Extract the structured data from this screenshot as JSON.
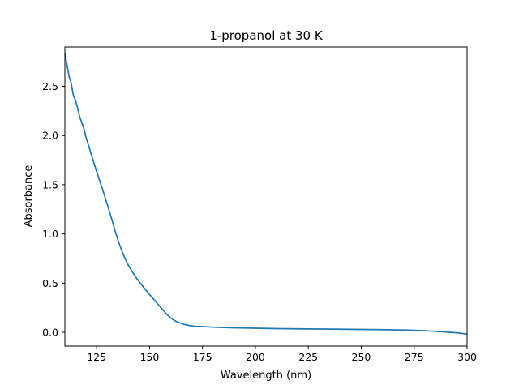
{
  "chart_data": {
    "type": "line",
    "title": "1-propanol at 30 K",
    "xlabel": "Wavelength (nm)",
    "ylabel": "Absorbance",
    "xlim": [
      110,
      300
    ],
    "ylim": [
      -0.14,
      2.9
    ],
    "x_ticks": [
      125,
      150,
      175,
      200,
      225,
      250,
      275,
      300
    ],
    "y_ticks": [
      0.0,
      0.5,
      1.0,
      1.5,
      2.0,
      2.5
    ],
    "x_tick_labels": [
      "125",
      "150",
      "175",
      "200",
      "225",
      "250",
      "275",
      "300"
    ],
    "y_tick_labels": [
      "0.0",
      "0.5",
      "1.0",
      "1.5",
      "2.0",
      "2.5"
    ],
    "grid": false,
    "legend": null,
    "colors": {
      "line": "#1f77b4",
      "axes": "#000000"
    },
    "series": [
      {
        "x": [
          110,
          111,
          112,
          113,
          114,
          115,
          116,
          117,
          118,
          119,
          120,
          122,
          124,
          126,
          128,
          130,
          132,
          134,
          136,
          138,
          140,
          142,
          144,
          146,
          148,
          150,
          152,
          154,
          156,
          158,
          160,
          162,
          164,
          166,
          168,
          170,
          172,
          175,
          180,
          185,
          190,
          195,
          200,
          205,
          210,
          215,
          220,
          225,
          230,
          235,
          240,
          245,
          250,
          255,
          260,
          265,
          270,
          275,
          280,
          285,
          290,
          295,
          300
        ],
        "y": [
          2.83,
          2.72,
          2.6,
          2.53,
          2.41,
          2.36,
          2.28,
          2.19,
          2.13,
          2.07,
          1.98,
          1.84,
          1.7,
          1.57,
          1.44,
          1.3,
          1.16,
          1.01,
          0.88,
          0.77,
          0.68,
          0.61,
          0.545,
          0.49,
          0.435,
          0.385,
          0.335,
          0.285,
          0.235,
          0.185,
          0.145,
          0.117,
          0.097,
          0.083,
          0.072,
          0.064,
          0.06,
          0.058,
          0.052,
          0.048,
          0.045,
          0.043,
          0.041,
          0.039,
          0.037,
          0.036,
          0.035,
          0.034,
          0.033,
          0.032,
          0.031,
          0.03,
          0.029,
          0.028,
          0.027,
          0.025,
          0.023,
          0.02,
          0.016,
          0.01,
          0.003,
          -0.005,
          -0.018
        ]
      }
    ]
  }
}
